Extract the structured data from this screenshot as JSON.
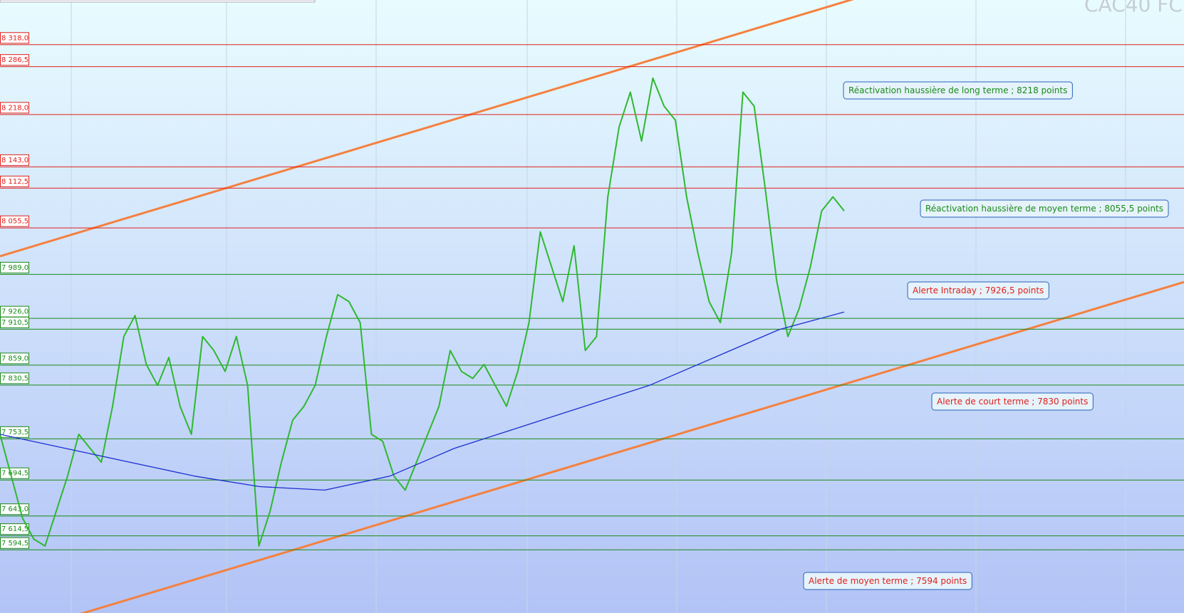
{
  "chart_data": {
    "type": "line",
    "title": "CAC40 FC",
    "ylim": [
      7504,
      8382
    ],
    "resistance_color": "#e0201c",
    "support_color": "#1a8a1a",
    "resistance_levels": [
      {
        "value": 8318,
        "label": "8 318,0"
      },
      {
        "value": 8286.5,
        "label": "8 286,5"
      },
      {
        "value": 8218,
        "label": "8 218,0"
      },
      {
        "value": 8143,
        "label": "8 143,0"
      },
      {
        "value": 8112.5,
        "label": "8 112,5"
      },
      {
        "value": 8055.5,
        "label": "8 055,5"
      }
    ],
    "support_levels": [
      {
        "value": 7989,
        "label": "7 989,0"
      },
      {
        "value": 7926,
        "label": "7 926,0"
      },
      {
        "value": 7910.5,
        "label": "7 910,5"
      },
      {
        "value": 7859,
        "label": "7 859,0"
      },
      {
        "value": 7830.5,
        "label": "7 830,5"
      },
      {
        "value": 7753.5,
        "label": "7 753,5"
      },
      {
        "value": 7694.5,
        "label": "7 694,5"
      },
      {
        "value": 7643,
        "label": "7 643,0"
      },
      {
        "value": 7614.5,
        "label": "7 614,5"
      },
      {
        "value": 7594.5,
        "label": "7 594,5"
      }
    ],
    "series": [
      {
        "color": "#2fb82f",
        "values": [
          7760,
          7700,
          7640,
          7610,
          7600,
          7650,
          7700,
          7760,
          7740,
          7720,
          7800,
          7900,
          7930,
          7860,
          7830,
          7870,
          7800,
          7760,
          7900,
          7880,
          7850,
          7900,
          7830,
          7600,
          7650,
          7720,
          7780,
          7800,
          7830,
          7900,
          7960,
          7950,
          7920,
          7760,
          7750,
          7700,
          7680,
          7720,
          7760,
          7800,
          7880,
          7850,
          7840,
          7860,
          7830,
          7800,
          7850,
          7920,
          8050,
          8000,
          7950,
          8030,
          7880,
          7900,
          8100,
          8200,
          8250,
          8180,
          8270,
          8230,
          8210,
          8100,
          8020,
          7950,
          7920,
          8020,
          8250,
          8230,
          8110,
          7980,
          7900,
          7940,
          8000,
          8080,
          8100,
          8080
        ]
      },
      {
        "color": "#1c2fd0",
        "values": [
          7760,
          7740,
          7720,
          7700,
          7685,
          7680,
          7700,
          7740,
          7770,
          7800,
          7830,
          7870,
          7910,
          7935
        ]
      }
    ],
    "trendline_color": "#f5803e",
    "trendlines": [
      [
        8015,
        8526
      ],
      [
        7468,
        7978
      ]
    ],
    "annotations": [
      {
        "text": "Réactivation haussière de long terme  ; 8218 points",
        "color": "#1a8a1a"
      },
      {
        "text": "Réactivation haussière de moyen terme  ; 8055,5 points",
        "color": "#1a8a1a"
      },
      {
        "text": "Alerte Intraday ; 7926,5 points",
        "color": "#e0201c"
      },
      {
        "text": "Alerte de court terme ; 7830 points",
        "color": "#e0201c"
      },
      {
        "text": "Alerte de moyen terme ; 7594 points",
        "color": "#e0201c"
      }
    ]
  }
}
